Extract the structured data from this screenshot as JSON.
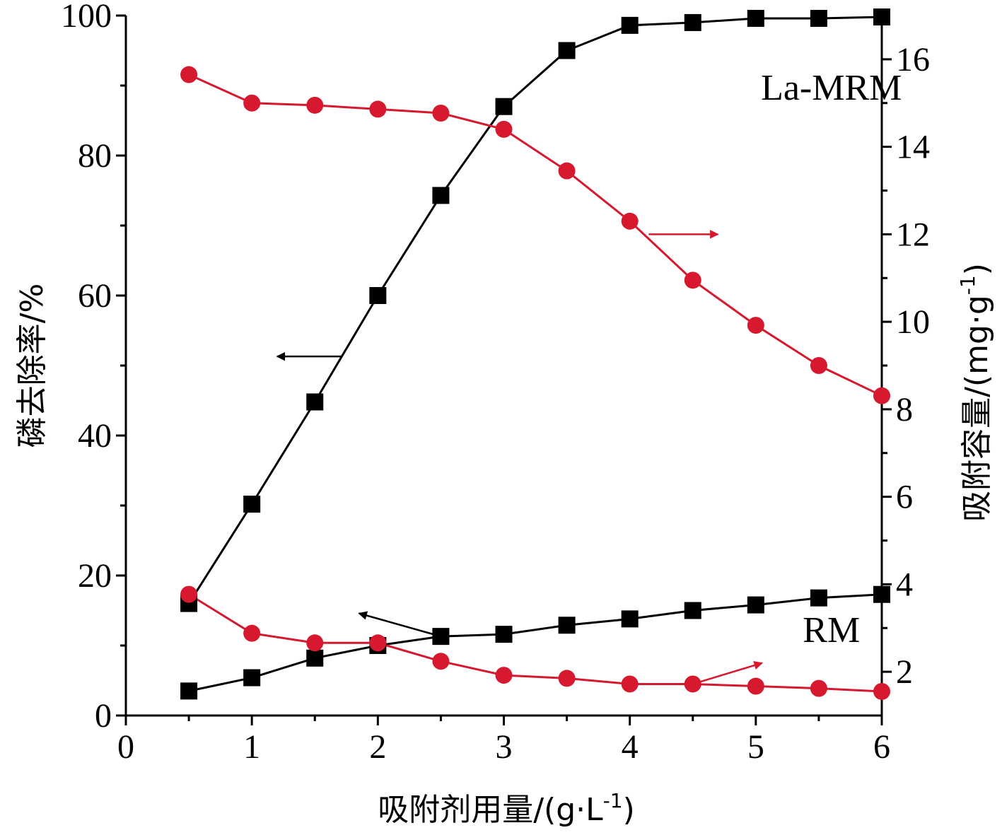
{
  "chart_data": {
    "type": "line",
    "xlabel": "吸附剂用量/(g·L",
    "xlabel_sup": "-1",
    "xlabel_end": ")",
    "ylabel_left": "磷去除率/%",
    "ylabel_right": "吸附容量/(mg·g",
    "ylabel_right_sup": "-1",
    "ylabel_right_end": ")",
    "xlim": [
      0,
      6
    ],
    "ylim_left": [
      0,
      100
    ],
    "ylim_right": [
      1,
      17
    ],
    "xticks": [
      0,
      1,
      2,
      3,
      4,
      5,
      6
    ],
    "yticks_left": [
      0,
      20,
      40,
      60,
      80,
      100
    ],
    "yticks_right": [
      2,
      4,
      6,
      8,
      10,
      12,
      14,
      16
    ],
    "x": [
      0.5,
      1.0,
      1.5,
      2.0,
      2.5,
      3.0,
      3.5,
      4.0,
      4.5,
      5.0,
      5.5,
      6.0
    ],
    "series": [
      {
        "axis": "left",
        "marker": "square",
        "color": "#000000",
        "values": [
          16,
          30.2,
          44.8,
          60,
          74.3,
          87,
          95,
          98.6,
          99,
          99.6,
          99.6,
          99.8
        ]
      },
      {
        "axis": "right",
        "marker": "circle",
        "color": "#d7192f",
        "values": [
          15.65,
          15.0,
          14.95,
          14.86,
          14.77,
          14.4,
          13.45,
          12.3,
          10.95,
          9.92,
          9.0,
          8.31
        ]
      },
      {
        "axis": "left",
        "marker": "square",
        "color": "#000000",
        "values": [
          3.5,
          5.4,
          8.2,
          10,
          11.3,
          11.6,
          12.9,
          13.8,
          15,
          15.8,
          16.8,
          17.3
        ]
      },
      {
        "axis": "right",
        "marker": "circle",
        "color": "#d7192f",
        "values": [
          3.77,
          2.88,
          2.66,
          2.66,
          2.24,
          1.92,
          1.85,
          1.72,
          1.72,
          1.67,
          1.62,
          1.55
        ]
      }
    ],
    "annotations": [
      {
        "text": "La-MRM",
        "x": 5.6,
        "y_left": 88
      },
      {
        "text": "RM",
        "x": 5.6,
        "y_left": 10.5
      }
    ],
    "arrows": [
      {
        "color": "#000000",
        "from": [
          1.72,
          51.3
        ],
        "to": [
          1.2,
          51.3
        ]
      },
      {
        "color": "#d7192f",
        "from": [
          4.15,
          12.0
        ],
        "to": [
          4.7,
          12.0
        ]
      },
      {
        "color": "#000000",
        "from": [
          2.5,
          11.3
        ],
        "to": [
          1.85,
          14.6
        ]
      },
      {
        "color": "#d7192f",
        "from": [
          4.5,
          1.72
        ],
        "to": [
          5.05,
          2.2
        ]
      }
    ],
    "grid": false
  }
}
